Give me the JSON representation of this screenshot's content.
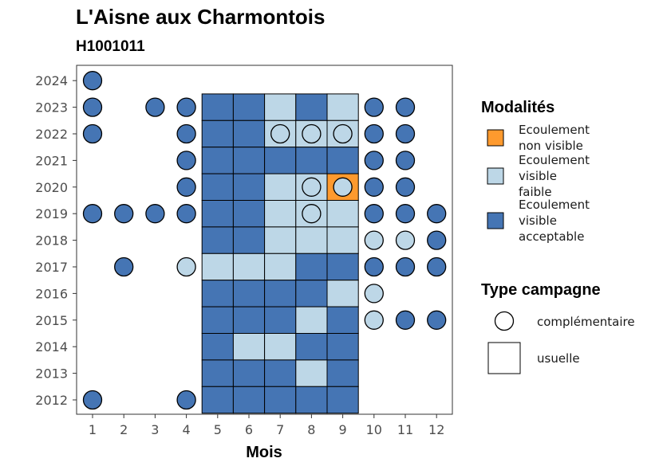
{
  "chart_data": {
    "type": "heatmap",
    "title": "L'Aisne aux Charmontois",
    "subtitle": "H1001011",
    "xlabel": "Mois",
    "ylabel": "",
    "x_ticks": [
      "1",
      "2",
      "3",
      "4",
      "5",
      "6",
      "7",
      "8",
      "9",
      "10",
      "11",
      "12"
    ],
    "y_ticks": [
      "2012",
      "2013",
      "2014",
      "2015",
      "2016",
      "2017",
      "2018",
      "2019",
      "2020",
      "2021",
      "2022",
      "2023",
      "2024"
    ],
    "colors": {
      "non_visible": "#FE9A2E",
      "faible": "#BDD7E7",
      "acceptable": "#4575B4"
    },
    "legend_modalites": {
      "title": "Modalités",
      "items": [
        {
          "key": "non_visible",
          "label_lines": [
            "Ecoulement",
            "non visible"
          ]
        },
        {
          "key": "faible",
          "label_lines": [
            "Ecoulement",
            "visible",
            "faible"
          ]
        },
        {
          "key": "acceptable",
          "label_lines": [
            "Ecoulement",
            "visible",
            "acceptable"
          ]
        }
      ]
    },
    "legend_campagne": {
      "title": "Type campagne",
      "items": [
        {
          "shape": "circle",
          "label": "complémentaire"
        },
        {
          "shape": "square",
          "label": "usuelle"
        }
      ]
    },
    "usuelle": [
      {
        "year": 2023,
        "values": {
          "5": "acceptable",
          "6": "acceptable",
          "7": "faible",
          "8": "acceptable",
          "9": "faible"
        }
      },
      {
        "year": 2022,
        "values": {
          "5": "acceptable",
          "6": "acceptable",
          "7": "faible",
          "8": "faible",
          "9": "faible"
        }
      },
      {
        "year": 2021,
        "values": {
          "5": "acceptable",
          "6": "acceptable",
          "7": "acceptable",
          "8": "acceptable",
          "9": "acceptable"
        }
      },
      {
        "year": 2020,
        "values": {
          "5": "acceptable",
          "6": "acceptable",
          "7": "faible",
          "8": "faible",
          "9": "non_visible"
        }
      },
      {
        "year": 2019,
        "values": {
          "5": "acceptable",
          "6": "acceptable",
          "7": "faible",
          "8": "faible",
          "9": "faible"
        }
      },
      {
        "year": 2018,
        "values": {
          "5": "acceptable",
          "6": "acceptable",
          "7": "faible",
          "8": "faible",
          "9": "faible"
        }
      },
      {
        "year": 2017,
        "values": {
          "5": "faible",
          "6": "faible",
          "7": "faible",
          "8": "acceptable",
          "9": "acceptable"
        }
      },
      {
        "year": 2016,
        "values": {
          "5": "acceptable",
          "6": "acceptable",
          "7": "acceptable",
          "8": "acceptable",
          "9": "faible"
        }
      },
      {
        "year": 2015,
        "values": {
          "5": "acceptable",
          "6": "acceptable",
          "7": "acceptable",
          "8": "faible",
          "9": "acceptable"
        }
      },
      {
        "year": 2014,
        "values": {
          "5": "acceptable",
          "6": "faible",
          "7": "faible",
          "8": "acceptable",
          "9": "acceptable"
        }
      },
      {
        "year": 2013,
        "values": {
          "5": "acceptable",
          "6": "acceptable",
          "7": "acceptable",
          "8": "faible",
          "9": "acceptable"
        }
      },
      {
        "year": 2012,
        "values": {
          "5": "acceptable",
          "6": "acceptable",
          "7": "acceptable",
          "8": "acceptable",
          "9": "acceptable"
        }
      }
    ],
    "complementaire": [
      {
        "year": 2024,
        "values": {
          "1": "acceptable"
        }
      },
      {
        "year": 2023,
        "values": {
          "1": "acceptable",
          "3": "acceptable",
          "4": "acceptable",
          "10": "acceptable",
          "11": "acceptable"
        }
      },
      {
        "year": 2022,
        "values": {
          "1": "acceptable",
          "4": "acceptable",
          "7": "faible",
          "8": "faible",
          "9": "faible",
          "10": "acceptable",
          "11": "acceptable"
        }
      },
      {
        "year": 2021,
        "values": {
          "4": "acceptable",
          "10": "acceptable",
          "11": "acceptable"
        }
      },
      {
        "year": 2020,
        "values": {
          "4": "acceptable",
          "8": "faible",
          "9": "faible",
          "10": "acceptable",
          "11": "acceptable"
        }
      },
      {
        "year": 2019,
        "values": {
          "1": "acceptable",
          "2": "acceptable",
          "3": "acceptable",
          "4": "acceptable",
          "8": "faible",
          "10": "acceptable",
          "11": "acceptable",
          "12": "acceptable"
        }
      },
      {
        "year": 2018,
        "values": {
          "10": "faible",
          "11": "faible",
          "12": "acceptable"
        }
      },
      {
        "year": 2017,
        "values": {
          "2": "acceptable",
          "4": "faible",
          "10": "acceptable",
          "11": "acceptable",
          "12": "acceptable"
        }
      },
      {
        "year": 2016,
        "values": {
          "10": "faible"
        }
      },
      {
        "year": 2015,
        "values": {
          "10": "faible",
          "11": "acceptable",
          "12": "acceptable"
        }
      },
      {
        "year": 2012,
        "values": {
          "1": "acceptable",
          "4": "acceptable"
        }
      }
    ]
  }
}
